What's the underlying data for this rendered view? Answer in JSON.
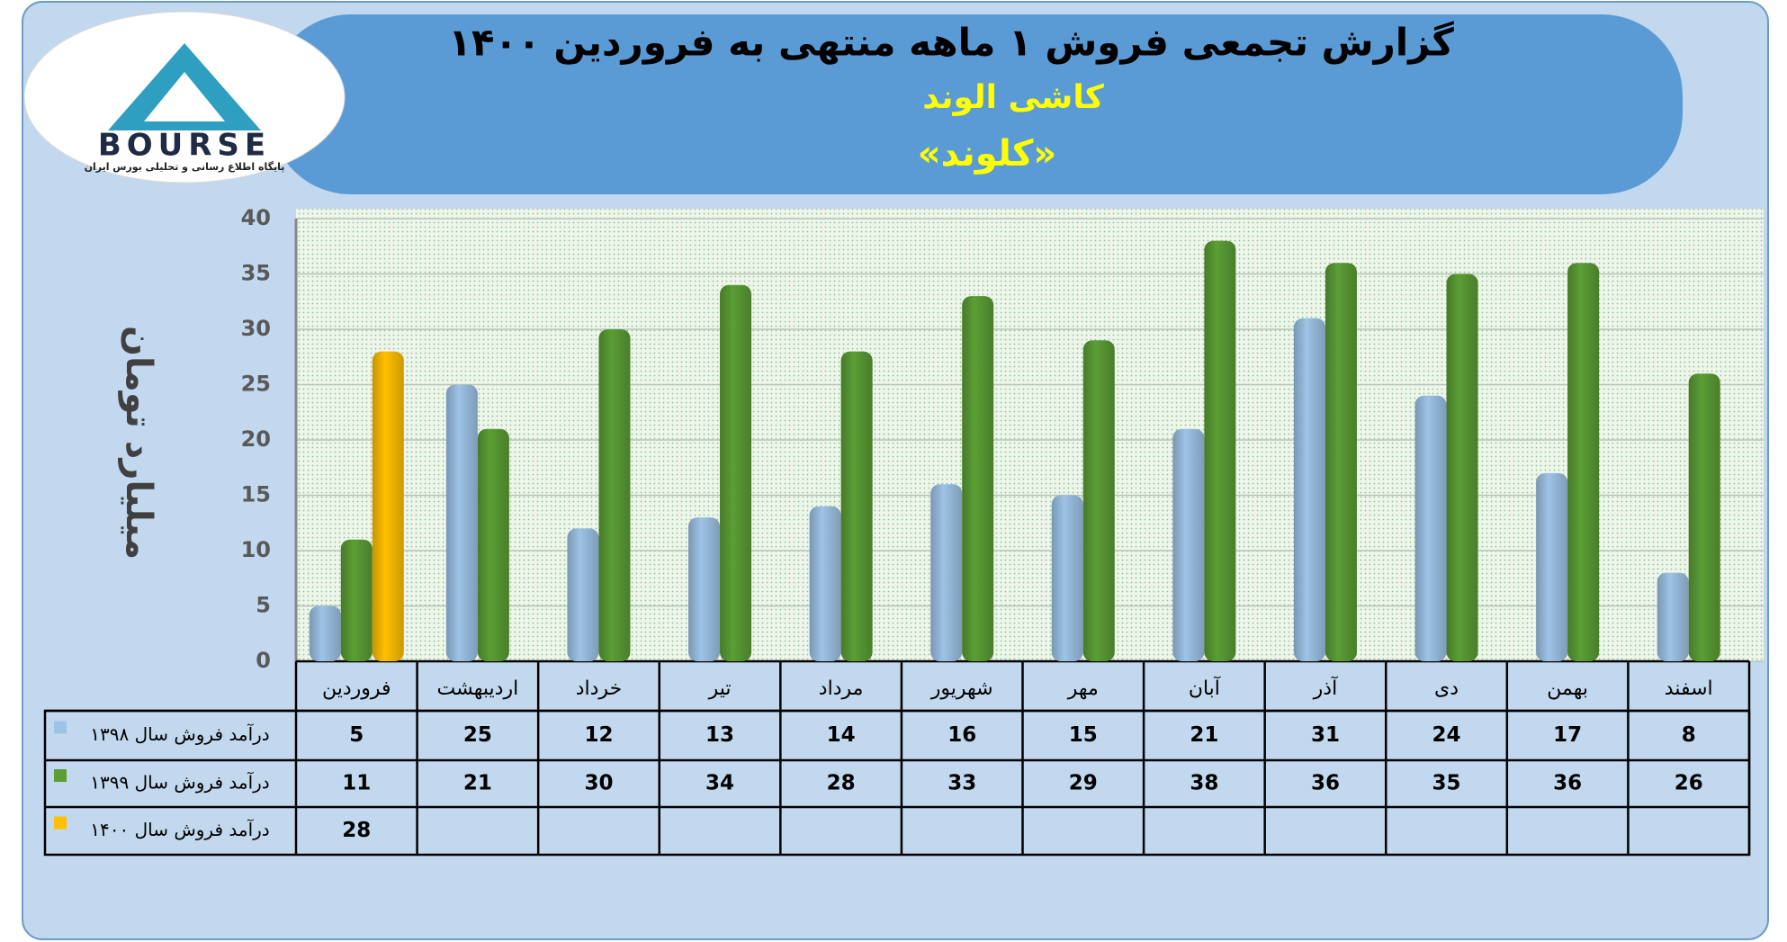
{
  "logo": {
    "name": "BOURSE",
    "tagline": "پایگاه اطلاع رسانی و تحلیلی بورس ایران"
  },
  "chart_data": {
    "type": "bar",
    "title": "گزارش تجمعی فروش ۱ ماهه منتهی به فروردین ۱۴۰۰",
    "subtitle": "کاشی الوند",
    "symbol": "«کلوند»",
    "y_label": "میلیارد تومان",
    "categories": [
      "فروردین",
      "اردیبهشت",
      "خرداد",
      "تیر",
      "مرداد",
      "شهریور",
      "مهر",
      "آبان",
      "آذر",
      "دی",
      "بهمن",
      "اسفند"
    ],
    "series": [
      {
        "name": "درآمد فروش سال ۱۳۹۸",
        "color": "#9dc3e6",
        "values": [
          5,
          25,
          12,
          13,
          14,
          16,
          15,
          21,
          31,
          24,
          17,
          8
        ]
      },
      {
        "name": "درآمد فروش سال ۱۳۹۹",
        "color": "#5b9e35",
        "values": [
          11,
          21,
          30,
          34,
          28,
          33,
          29,
          38,
          36,
          35,
          36,
          26
        ]
      },
      {
        "name": "درآمد فروش سال ۱۴۰۰",
        "color": "#ffc000",
        "values": [
          28,
          null,
          null,
          null,
          null,
          null,
          null,
          null,
          null,
          null,
          null,
          null
        ]
      }
    ],
    "ylim": [
      0,
      40
    ],
    "yticks": [
      0,
      5,
      10,
      15,
      20,
      25,
      30,
      35,
      40
    ],
    "grid": true
  }
}
